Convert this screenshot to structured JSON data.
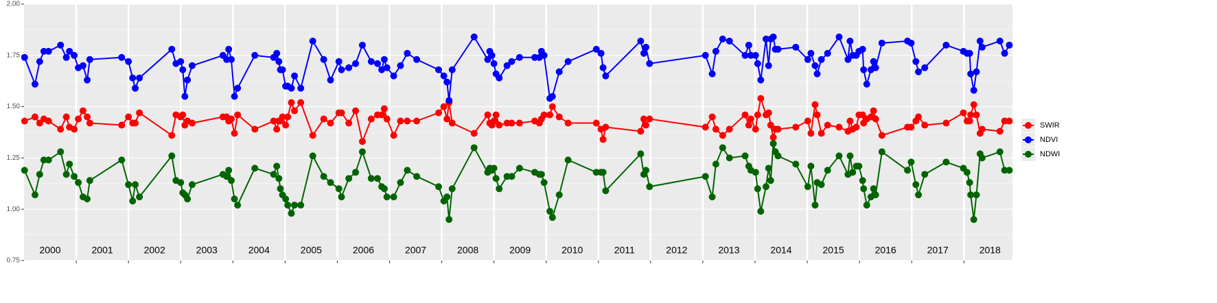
{
  "chart_data": {
    "type": "line",
    "x": [
      2000.01,
      2000.21,
      2000.3,
      2000.38,
      2000.47,
      2000.7,
      2000.81,
      2000.87,
      2000.96,
      2001.04,
      2001.13,
      2001.21,
      2001.26,
      2001.87,
      2002.0,
      2002.08,
      2002.13,
      2002.21,
      2002.83,
      2002.91,
      2003.0,
      2003.04,
      2003.08,
      2003.13,
      2003.22,
      2003.81,
      2003.88,
      2003.92,
      2003.97,
      2004.03,
      2004.09,
      2004.42,
      2004.78,
      2004.84,
      2004.88,
      2004.91,
      2004.95,
      2005.01,
      2005.05,
      2005.12,
      2005.18,
      2005.3,
      2005.53,
      2005.74,
      2005.87,
      2006.03,
      2006.08,
      2006.22,
      2006.35,
      2006.48,
      2006.65,
      2006.77,
      2006.85,
      2006.9,
      2006.95,
      2007.08,
      2007.21,
      2007.34,
      2007.52,
      2007.94,
      2008.04,
      2008.1,
      2008.14,
      2008.2,
      2008.62,
      2008.88,
      2008.92,
      2008.96,
      2009.0,
      2009.04,
      2009.1,
      2009.25,
      2009.34,
      2009.49,
      2009.78,
      2009.87,
      2009.91,
      2009.96,
      2010.07,
      2010.12,
      2010.25,
      2010.42,
      2010.96,
      2011.05,
      2011.09,
      2011.14,
      2011.81,
      2011.87,
      2011.91,
      2011.98,
      2013.05,
      2013.18,
      2013.25,
      2013.38,
      2013.51,
      2013.81,
      2013.88,
      2013.92,
      2014.01,
      2014.05,
      2014.11,
      2014.21,
      2014.26,
      2014.3,
      2014.35,
      2014.39,
      2014.44,
      2014.78,
      2015.01,
      2015.07,
      2015.15,
      2015.19,
      2015.27,
      2015.39,
      2015.61,
      2015.78,
      2015.82,
      2015.87,
      2015.94,
      2015.99,
      2016.06,
      2016.08,
      2016.14,
      2016.22,
      2016.27,
      2016.31,
      2016.43,
      2016.92,
      2016.99,
      2017.08,
      2017.13,
      2017.25,
      2017.66,
      2017.99,
      2018.06,
      2018.11,
      2018.13,
      2018.19,
      2018.24,
      2018.31,
      2018.35,
      2018.69,
      2018.78,
      2018.87
    ],
    "series": [
      {
        "name": "SWIR",
        "color": "#ff0000",
        "values": [
          1.43,
          1.45,
          1.42,
          1.44,
          1.43,
          1.39,
          1.45,
          1.4,
          1.39,
          1.44,
          1.48,
          1.45,
          1.42,
          1.41,
          1.45,
          1.42,
          1.42,
          1.47,
          1.36,
          1.46,
          1.45,
          1.46,
          1.41,
          1.43,
          1.42,
          1.45,
          1.45,
          1.43,
          1.44,
          1.37,
          1.46,
          1.39,
          1.43,
          1.39,
          1.43,
          1.43,
          1.45,
          1.41,
          1.45,
          1.52,
          1.48,
          1.52,
          1.36,
          1.44,
          1.42,
          1.47,
          1.47,
          1.42,
          1.48,
          1.33,
          1.44,
          1.46,
          1.46,
          1.49,
          1.44,
          1.36,
          1.43,
          1.43,
          1.43,
          1.47,
          1.5,
          1.44,
          1.52,
          1.42,
          1.37,
          1.46,
          1.42,
          1.41,
          1.43,
          1.46,
          1.41,
          1.42,
          1.42,
          1.42,
          1.43,
          1.42,
          1.44,
          1.46,
          1.46,
          1.5,
          1.45,
          1.42,
          1.42,
          1.39,
          1.34,
          1.4,
          1.38,
          1.44,
          1.41,
          1.44,
          1.4,
          1.45,
          1.39,
          1.36,
          1.39,
          1.46,
          1.41,
          1.44,
          1.39,
          1.46,
          1.54,
          1.46,
          1.47,
          1.41,
          1.35,
          1.39,
          1.39,
          1.4,
          1.43,
          1.37,
          1.51,
          1.46,
          1.37,
          1.41,
          1.4,
          1.38,
          1.43,
          1.39,
          1.4,
          1.46,
          1.46,
          1.42,
          1.44,
          1.45,
          1.48,
          1.44,
          1.36,
          1.4,
          1.4,
          1.43,
          1.45,
          1.41,
          1.42,
          1.47,
          1.43,
          1.43,
          1.46,
          1.51,
          1.46,
          1.37,
          1.39,
          1.38,
          1.43,
          1.43
        ]
      },
      {
        "name": "NDVI",
        "color": "#0000ff",
        "values": [
          1.74,
          1.61,
          1.72,
          1.77,
          1.77,
          1.8,
          1.74,
          1.77,
          1.75,
          1.69,
          1.7,
          1.63,
          1.73,
          1.74,
          1.72,
          1.64,
          1.59,
          1.64,
          1.78,
          1.71,
          1.72,
          1.68,
          1.55,
          1.63,
          1.7,
          1.75,
          1.73,
          1.78,
          1.73,
          1.55,
          1.59,
          1.75,
          1.74,
          1.76,
          1.72,
          1.68,
          1.68,
          1.6,
          1.6,
          1.59,
          1.65,
          1.59,
          1.82,
          1.73,
          1.63,
          1.72,
          1.68,
          1.69,
          1.71,
          1.8,
          1.72,
          1.71,
          1.68,
          1.73,
          1.69,
          1.65,
          1.7,
          1.76,
          1.73,
          1.68,
          1.65,
          1.62,
          1.53,
          1.68,
          1.84,
          1.73,
          1.77,
          1.75,
          1.71,
          1.66,
          1.64,
          1.7,
          1.72,
          1.74,
          1.74,
          1.74,
          1.77,
          1.75,
          1.54,
          1.55,
          1.67,
          1.72,
          1.78,
          1.76,
          1.69,
          1.65,
          1.82,
          1.76,
          1.79,
          1.71,
          1.75,
          1.66,
          1.77,
          1.83,
          1.82,
          1.75,
          1.8,
          1.75,
          1.75,
          1.71,
          1.63,
          1.83,
          1.7,
          1.83,
          1.84,
          1.78,
          1.78,
          1.79,
          1.73,
          1.76,
          1.7,
          1.66,
          1.73,
          1.76,
          1.84,
          1.73,
          1.82,
          1.75,
          1.75,
          1.77,
          1.78,
          1.68,
          1.61,
          1.68,
          1.72,
          1.69,
          1.81,
          1.82,
          1.81,
          1.72,
          1.67,
          1.69,
          1.8,
          1.77,
          1.76,
          1.76,
          1.66,
          1.58,
          1.67,
          1.82,
          1.79,
          1.82,
          1.76,
          1.8
        ]
      },
      {
        "name": "NDWI",
        "color": "#006400",
        "values": [
          1.19,
          1.07,
          1.17,
          1.24,
          1.24,
          1.28,
          1.17,
          1.22,
          1.16,
          1.13,
          1.06,
          1.05,
          1.14,
          1.24,
          1.12,
          1.04,
          1.12,
          1.06,
          1.26,
          1.14,
          1.13,
          1.08,
          1.07,
          1.05,
          1.12,
          1.17,
          1.16,
          1.19,
          1.14,
          1.05,
          1.02,
          1.2,
          1.17,
          1.21,
          1.15,
          1.1,
          1.07,
          1.05,
          1.02,
          0.98,
          1.02,
          1.02,
          1.26,
          1.16,
          1.13,
          1.1,
          1.06,
          1.15,
          1.18,
          1.28,
          1.15,
          1.15,
          1.11,
          1.1,
          1.06,
          1.06,
          1.13,
          1.19,
          1.16,
          1.11,
          1.04,
          1.06,
          0.95,
          1.1,
          1.3,
          1.18,
          1.2,
          1.19,
          1.2,
          1.15,
          1.1,
          1.16,
          1.16,
          1.2,
          1.18,
          1.17,
          1.17,
          1.13,
          0.99,
          0.96,
          1.07,
          1.24,
          1.18,
          1.18,
          1.18,
          1.09,
          1.27,
          1.17,
          1.19,
          1.11,
          1.16,
          1.06,
          1.22,
          1.3,
          1.25,
          1.26,
          1.21,
          1.19,
          1.18,
          1.1,
          0.99,
          1.11,
          1.2,
          1.14,
          1.32,
          1.28,
          1.26,
          1.22,
          1.11,
          1.21,
          1.02,
          1.13,
          1.12,
          1.19,
          1.26,
          1.17,
          1.26,
          1.18,
          1.21,
          1.21,
          1.14,
          1.1,
          1.02,
          1.06,
          1.1,
          1.07,
          1.28,
          1.19,
          1.23,
          1.12,
          1.07,
          1.17,
          1.23,
          1.2,
          1.18,
          1.13,
          1.07,
          0.95,
          1.07,
          1.27,
          1.25,
          1.28,
          1.19,
          1.19
        ]
      }
    ],
    "xlim": [
      2000,
      2018.93
    ],
    "xticks": [
      {
        "value": 2000.5,
        "label": "2000"
      },
      {
        "value": 2001.5,
        "label": "2001"
      },
      {
        "value": 2002.5,
        "label": "2002"
      },
      {
        "value": 2003.5,
        "label": "2003"
      },
      {
        "value": 2004.5,
        "label": "2004"
      },
      {
        "value": 2005.5,
        "label": "2005"
      },
      {
        "value": 2006.5,
        "label": "2006"
      },
      {
        "value": 2007.5,
        "label": "2007"
      },
      {
        "value": 2008.5,
        "label": "2008"
      },
      {
        "value": 2009.5,
        "label": "2009"
      },
      {
        "value": 2010.5,
        "label": "2010"
      },
      {
        "value": 2011.5,
        "label": "2011"
      },
      {
        "value": 2012.5,
        "label": "2012"
      },
      {
        "value": 2013.5,
        "label": "2013"
      },
      {
        "value": 2014.5,
        "label": "2014"
      },
      {
        "value": 2015.5,
        "label": "2015"
      },
      {
        "value": 2016.5,
        "label": "2016"
      },
      {
        "value": 2017.5,
        "label": "2017"
      },
      {
        "value": 2018.5,
        "label": "2018"
      }
    ],
    "year_lines": [
      2001,
      2002,
      2003,
      2004,
      2005,
      2006,
      2007,
      2008,
      2009,
      2010,
      2011,
      2012,
      2013,
      2014,
      2015,
      2016,
      2017,
      2018
    ],
    "ylim": [
      0.75,
      2.0
    ],
    "yticks": [
      0.75,
      {
        "value": 1.0,
        "label": "1.00"
      },
      1.25,
      {
        "value": 1.5,
        "label": "1.50"
      },
      1.75,
      {
        "value": 2.0,
        "label": "2.00"
      }
    ],
    "grid": true,
    "legend": "right"
  }
}
